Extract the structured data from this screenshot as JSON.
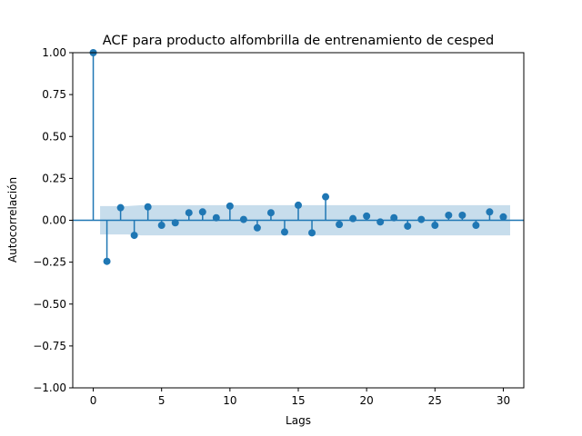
{
  "chart_data": {
    "type": "scatter",
    "subtype": "acf-stem",
    "title": "ACF para producto alfombrilla de entrenamiento de cesped",
    "xlabel": "Lags",
    "ylabel": "Autocorrelación",
    "xlim": [
      -1.5,
      31.5
    ],
    "ylim": [
      -1.0,
      1.0
    ],
    "xticks": [
      0,
      5,
      10,
      15,
      20,
      25,
      30
    ],
    "yticks": [
      -1.0,
      -0.75,
      -0.5,
      -0.25,
      0.0,
      0.25,
      0.5,
      0.75,
      1.0
    ],
    "ytick_labels": [
      "−1.00",
      "−0.75",
      "−0.50",
      "−0.25",
      "0.00",
      "0.25",
      "0.50",
      "0.75",
      "1.00"
    ],
    "grid": false,
    "series": [
      {
        "x": [
          0,
          1,
          2,
          3,
          4,
          5,
          6,
          7,
          8,
          9,
          10,
          11,
          12,
          13,
          14,
          15,
          16,
          17,
          18,
          19,
          20,
          21,
          22,
          23,
          24,
          25,
          26,
          27,
          28,
          29,
          30
        ],
        "values": [
          1.0,
          -0.245,
          0.075,
          -0.09,
          0.08,
          -0.03,
          -0.015,
          0.045,
          0.05,
          0.015,
          0.085,
          0.005,
          -0.045,
          0.045,
          -0.07,
          0.09,
          -0.075,
          0.14,
          -0.025,
          0.01,
          0.025,
          -0.01,
          0.015,
          -0.035,
          0.005,
          -0.03,
          0.03,
          0.03,
          -0.03,
          0.05,
          0.02
        ]
      }
    ],
    "confidence_band": {
      "x_start": 0.5,
      "x_end": 30.5,
      "lower": [
        -0.085,
        -0.085,
        -0.085,
        -0.09,
        -0.09,
        -0.09,
        -0.09,
        -0.09,
        -0.09,
        -0.09,
        -0.09,
        -0.09,
        -0.09,
        -0.09,
        -0.09,
        -0.09,
        -0.09,
        -0.09,
        -0.09,
        -0.09,
        -0.09,
        -0.09,
        -0.09,
        -0.09,
        -0.09,
        -0.09,
        -0.09,
        -0.09,
        -0.09,
        -0.09,
        -0.09
      ],
      "upper": [
        0.085,
        0.085,
        0.085,
        0.09,
        0.09,
        0.09,
        0.09,
        0.09,
        0.09,
        0.09,
        0.09,
        0.09,
        0.09,
        0.09,
        0.09,
        0.09,
        0.09,
        0.09,
        0.09,
        0.09,
        0.09,
        0.09,
        0.09,
        0.09,
        0.09,
        0.09,
        0.09,
        0.09,
        0.09,
        0.09,
        0.09
      ]
    },
    "colors": {
      "stem": "#1f77b4",
      "band": "#1f77b4",
      "zero_line": "#1f77b4"
    }
  }
}
